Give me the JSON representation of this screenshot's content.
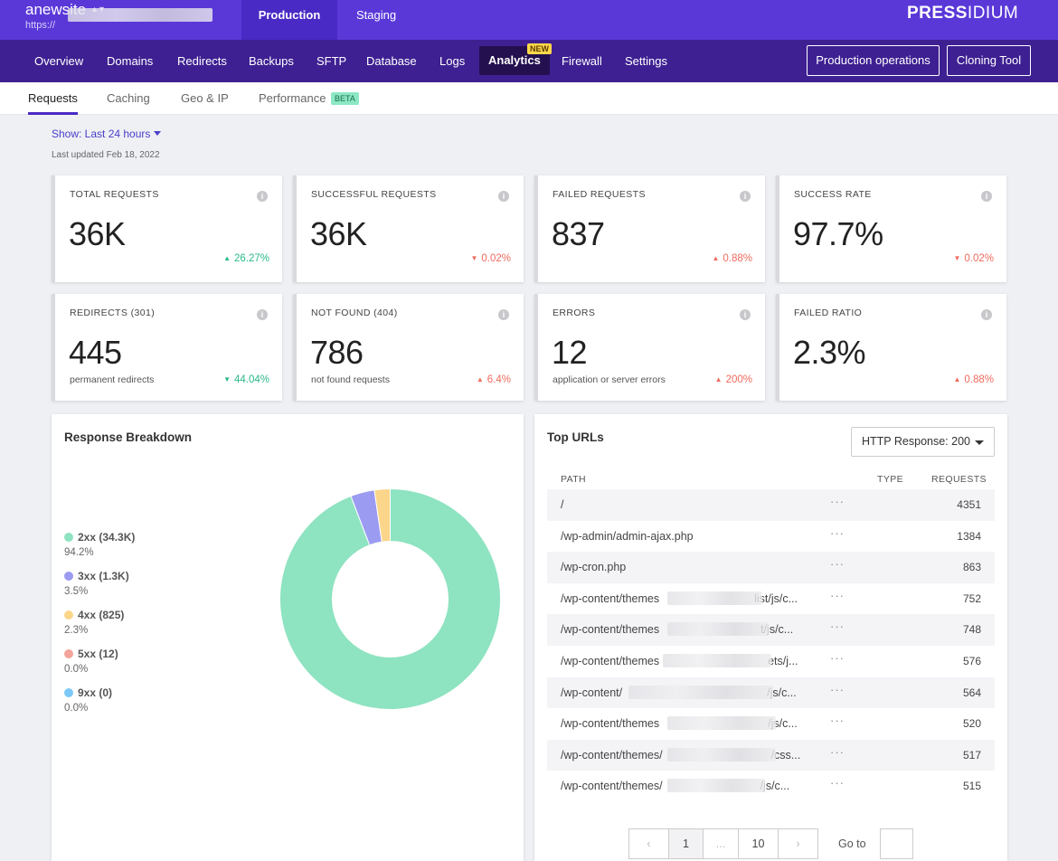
{
  "site": {
    "name": "anewsite",
    "switch_icon": "up-down-chevron-icon",
    "url_prefix": "https://"
  },
  "env_tabs": {
    "production": "Production",
    "staging": "Staging"
  },
  "brand": {
    "logo_bold": "PRESSIDIUM",
    "logo_accent": "#ffffff"
  },
  "nav": {
    "items": [
      "Overview",
      "Domains",
      "Redirects",
      "Backups",
      "SFTP",
      "Database",
      "Logs",
      "Analytics",
      "Firewall",
      "Settings"
    ],
    "active": "Analytics",
    "new_badge": "NEW",
    "production_operations": "Production operations",
    "cloning_tool": "Cloning Tool"
  },
  "subtabs": {
    "requests": "Requests",
    "caching": "Caching",
    "geo_ip": "Geo & IP",
    "performance": "Performance",
    "beta": "BETA"
  },
  "filter": {
    "show": "Show: Last 24 hours",
    "last_updated": "Last updated Feb 18, 2022"
  },
  "cards": [
    {
      "title": "TOTAL REQUESTS",
      "value": "36K",
      "sub": "",
      "change": "26.27%",
      "direction": "up",
      "tone": "good"
    },
    {
      "title": "SUCCESSFUL REQUESTS",
      "value": "36K",
      "sub": "",
      "change": "0.02%",
      "direction": "down",
      "tone": "bad"
    },
    {
      "title": "FAILED REQUESTS",
      "value": "837",
      "sub": "",
      "change": "0.88%",
      "direction": "up",
      "tone": "bad"
    },
    {
      "title": "SUCCESS RATE",
      "value": "97.7%",
      "sub": "",
      "change": "0.02%",
      "direction": "down",
      "tone": "bad"
    },
    {
      "title": "REDIRECTS (301)",
      "value": "445",
      "sub": "permanent redirects",
      "change": "44.04%",
      "direction": "down",
      "tone": "good"
    },
    {
      "title": "NOT FOUND (404)",
      "value": "786",
      "sub": "not found requests",
      "change": "6.4%",
      "direction": "up",
      "tone": "bad"
    },
    {
      "title": "ERRORS",
      "value": "12",
      "sub": "application or server errors",
      "change": "200%",
      "direction": "up",
      "tone": "bad"
    },
    {
      "title": "FAILED RATIO",
      "value": "2.3%",
      "sub": "",
      "change": "0.88%",
      "direction": "up",
      "tone": "bad"
    }
  ],
  "response_breakdown": {
    "title": "Response Breakdown",
    "legend": [
      {
        "label": "2xx (34.3K)",
        "pct": "94.2%",
        "color": "#8ee3c0"
      },
      {
        "label": "3xx (1.3K)",
        "pct": "3.5%",
        "color": "#9b9bf2"
      },
      {
        "label": "4xx (825)",
        "pct": "2.3%",
        "color": "#fbd68a"
      },
      {
        "label": "5xx (12)",
        "pct": "0.0%",
        "color": "#f4a49a"
      },
      {
        "label": "9xx (0)",
        "pct": "0.0%",
        "color": "#7cc8f8"
      }
    ]
  },
  "chart_data": {
    "type": "pie",
    "title": "Response Breakdown",
    "categories": [
      "2xx",
      "3xx",
      "4xx",
      "5xx",
      "9xx"
    ],
    "values": [
      94.2,
      3.5,
      2.3,
      0.0,
      0.0
    ],
    "counts": [
      "34.3K",
      "1.3K",
      "825",
      "12",
      "0"
    ],
    "colors": [
      "#8ee3c0",
      "#9b9bf2",
      "#fbd68a",
      "#f4a49a",
      "#7cc8f8"
    ],
    "legend": "left"
  },
  "top_urls": {
    "title": "Top URLs",
    "filter": "HTTP Response: 200",
    "headers": {
      "path": "PATH",
      "type": "TYPE",
      "requests": "REQUESTS"
    },
    "more_icon": "ellipsis-icon",
    "rows": [
      {
        "path": "/",
        "tail": "",
        "count": "4351"
      },
      {
        "path": "/wp-admin/admin-ajax.php",
        "tail": "",
        "count": "1384"
      },
      {
        "path": "/wp-cron.php",
        "tail": "",
        "count": "863"
      },
      {
        "path": "/wp-content/themes",
        "tail": "list/js/c...",
        "count": "752"
      },
      {
        "path": "/wp-content/themes",
        "tail": "t/js/c...",
        "count": "748"
      },
      {
        "path": "/wp-content/themes",
        "tail": "ets/j...",
        "count": "576"
      },
      {
        "path": "/wp-content/",
        "tail": "/js/c...",
        "count": "564"
      },
      {
        "path": "/wp-content/themes",
        "tail": "/js/c...",
        "count": "520"
      },
      {
        "path": "/wp-content/themes/",
        "tail": "/css...",
        "count": "517"
      },
      {
        "path": "/wp-content/themes/",
        "tail": "/js/c...",
        "count": "515"
      }
    ]
  },
  "pagination": {
    "prev": "‹",
    "current": "1",
    "ellipsis": "...",
    "last": "10",
    "next": "›",
    "goto": "Go to"
  }
}
